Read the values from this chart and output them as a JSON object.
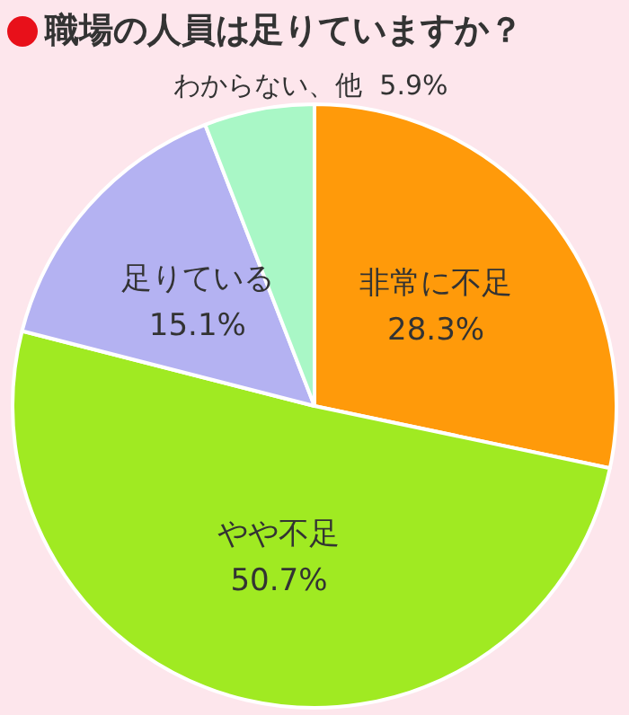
{
  "chart_data": {
    "type": "pie",
    "title": "職場の人員は足りていますか？",
    "categories": [
      "非常に不足",
      "やや不足",
      "足りている",
      "わからない、他"
    ],
    "values": [
      28.3,
      50.7,
      15.1,
      5.9
    ],
    "value_labels": [
      "28.3%",
      "50.7%",
      "15.1%",
      "5.9%"
    ],
    "colors": [
      "#ff9a0a",
      "#a0ea22",
      "#b4b2f2",
      "#a9f7c6"
    ]
  }
}
